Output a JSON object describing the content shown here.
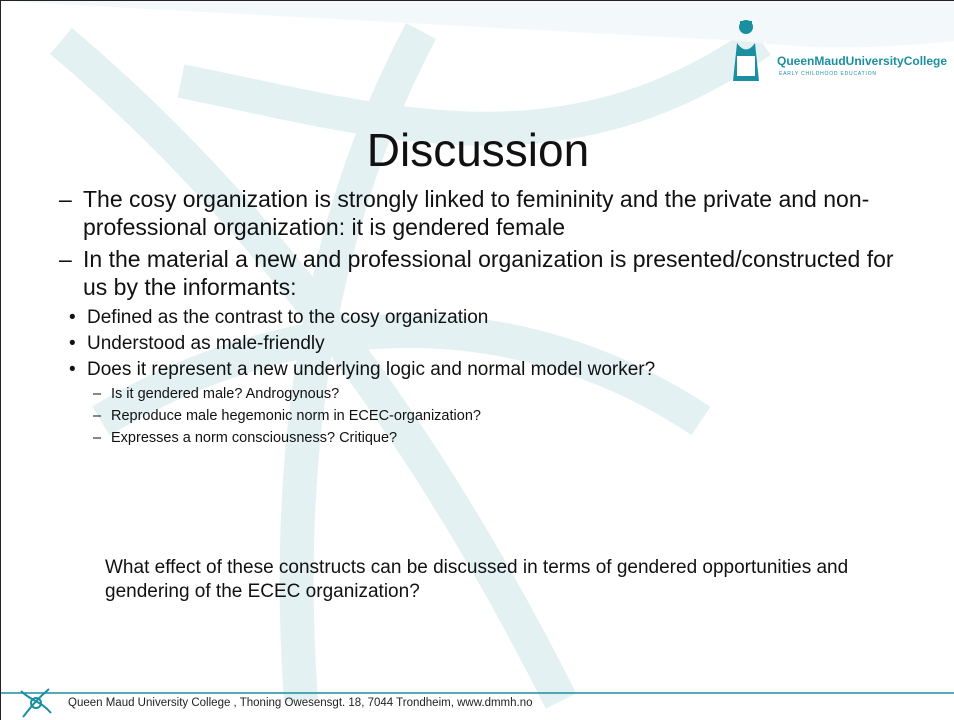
{
  "header": {
    "logo_name": "QueenMaudUniversityCollege",
    "logo_tagline": "EARLY CHILDHOOD EDUCATION"
  },
  "title": "Discussion",
  "points": [
    {
      "text": "The cosy organization is strongly linked to femininity and the private and non-professional organization: it is gendered female"
    },
    {
      "text": "In the material  a new and professional organization is presented/constructed for us by the informants:",
      "sub": [
        {
          "text": "Defined as the contrast to the cosy organization"
        },
        {
          "text": "Understood as male-friendly"
        },
        {
          "text": "Does it represent a new underlying logic and normal model worker?",
          "sub": [
            {
              "text": "Is it gendered male? Androgynous?"
            },
            {
              "text": "Reproduce male hegemonic norm in ECEC-organization?"
            },
            {
              "text": "Expresses a norm consciousness? Critique?"
            }
          ]
        }
      ]
    }
  ],
  "closing": "What effect of these constructs can be discussed in terms of gendered opportunities and gendering of  the ECEC organization?",
  "footer": "Queen Maud University College , Thoning Owesensgt. 18, 7044 Trondheim, www.dmmh.no"
}
